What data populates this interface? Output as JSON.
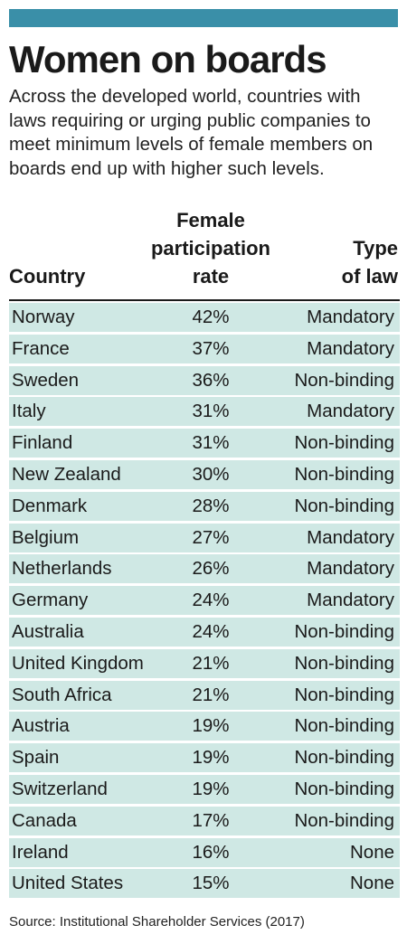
{
  "header": {
    "title": "Women on boards",
    "subtitle": "Across the developed world, countries with laws requiring or urging public companies to meet minimum levels of female members on boards end up with higher such levels."
  },
  "columns": {
    "country": "Country",
    "rate_line1": "Female",
    "rate_line2": "participation",
    "rate_line3": "rate",
    "law_line1": "Type",
    "law_line2": "of law"
  },
  "colors": {
    "accent_bar": "#3a8fa8",
    "row_fill": "#cfe8e4"
  },
  "chart_data": {
    "type": "table",
    "title": "Women on boards",
    "columns": [
      "Country",
      "Female participation rate",
      "Type of law"
    ],
    "rows": [
      {
        "country": "Norway",
        "rate": "42%",
        "law": "Mandatory"
      },
      {
        "country": "France",
        "rate": "37%",
        "law": "Mandatory"
      },
      {
        "country": "Sweden",
        "rate": "36%",
        "law": "Non-binding"
      },
      {
        "country": "Italy",
        "rate": "31%",
        "law": "Mandatory"
      },
      {
        "country": "Finland",
        "rate": "31%",
        "law": "Non-binding"
      },
      {
        "country": "New Zealand",
        "rate": "30%",
        "law": "Non-binding"
      },
      {
        "country": "Denmark",
        "rate": "28%",
        "law": "Non-binding"
      },
      {
        "country": "Belgium",
        "rate": "27%",
        "law": "Mandatory"
      },
      {
        "country": "Netherlands",
        "rate": "26%",
        "law": "Mandatory"
      },
      {
        "country": "Germany",
        "rate": "24%",
        "law": "Mandatory"
      },
      {
        "country": "Australia",
        "rate": "24%",
        "law": "Non-binding"
      },
      {
        "country": "United Kingdom",
        "rate": "21%",
        "law": "Non-binding"
      },
      {
        "country": "South Africa",
        "rate": "21%",
        "law": "Non-binding"
      },
      {
        "country": "Austria",
        "rate": "19%",
        "law": "Non-binding"
      },
      {
        "country": "Spain",
        "rate": "19%",
        "law": "Non-binding"
      },
      {
        "country": "Switzerland",
        "rate": "19%",
        "law": "Non-binding"
      },
      {
        "country": "Canada",
        "rate": "17%",
        "law": "Non-binding"
      },
      {
        "country": "Ireland",
        "rate": "16%",
        "law": "None"
      },
      {
        "country": "United States",
        "rate": "15%",
        "law": "None"
      }
    ]
  },
  "footer": {
    "source": "Source: Institutional Shareholder Services (2017)"
  }
}
